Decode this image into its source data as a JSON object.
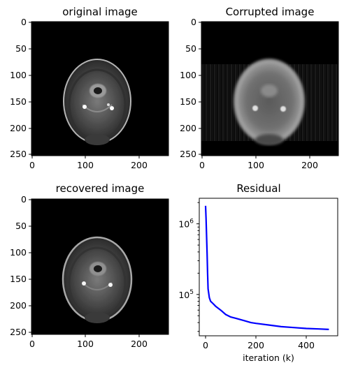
{
  "figure": {
    "panels": [
      {
        "title": "original image"
      },
      {
        "title": "Corrupted image"
      },
      {
        "title": "recovered image"
      },
      {
        "title": "Residual"
      }
    ]
  },
  "chart_data": [
    {
      "type": "heatmap",
      "title": "original image",
      "image": "MRI head slice, grayscale, clear detail",
      "xlim": [
        0,
        256
      ],
      "ylim": [
        256,
        0
      ],
      "xticks": [
        0,
        100,
        200
      ],
      "yticks": [
        0,
        50,
        100,
        150,
        200,
        250
      ]
    },
    {
      "type": "heatmap",
      "title": "Corrupted image",
      "image": "MRI head slice, blurred with streak artifacts",
      "xlim": [
        0,
        256
      ],
      "ylim": [
        256,
        0
      ],
      "xticks": [
        0,
        100,
        200
      ],
      "yticks": [
        0,
        50,
        100,
        150,
        200,
        250
      ]
    },
    {
      "type": "heatmap",
      "title": "recovered image",
      "image": "MRI head slice, reconstructed",
      "xlim": [
        0,
        256
      ],
      "ylim": [
        256,
        0
      ],
      "xticks": [
        0,
        100,
        200
      ],
      "yticks": [
        0,
        50,
        100,
        150,
        200,
        250
      ]
    },
    {
      "type": "line",
      "title": "Residual",
      "xlabel": "iteration (k)",
      "ylabel": "",
      "yscale": "log",
      "xlim": [
        -25,
        525
      ],
      "ylim": [
        26000,
        2300000
      ],
      "xticks": [
        0,
        200,
        400
      ],
      "yticks": [
        {
          "value": 100000,
          "label": "10^5"
        },
        {
          "value": 1000000,
          "label": "10^6"
        }
      ],
      "grid": false,
      "color": "#0000ff",
      "series": [
        {
          "x": [
            0,
            2,
            4,
            6,
            8,
            10,
            15,
            20,
            30,
            40,
            60,
            80,
            100,
            120,
            150,
            180,
            200,
            250,
            300,
            350,
            400,
            450,
            490
          ],
          "y": [
            1800000,
            1200000,
            700000,
            380000,
            200000,
            120000,
            90000,
            80000,
            74000,
            68000,
            60000,
            52000,
            48000,
            46000,
            43000,
            40000,
            39000,
            37000,
            35000,
            34000,
            33000,
            32500,
            32000
          ]
        }
      ]
    }
  ]
}
